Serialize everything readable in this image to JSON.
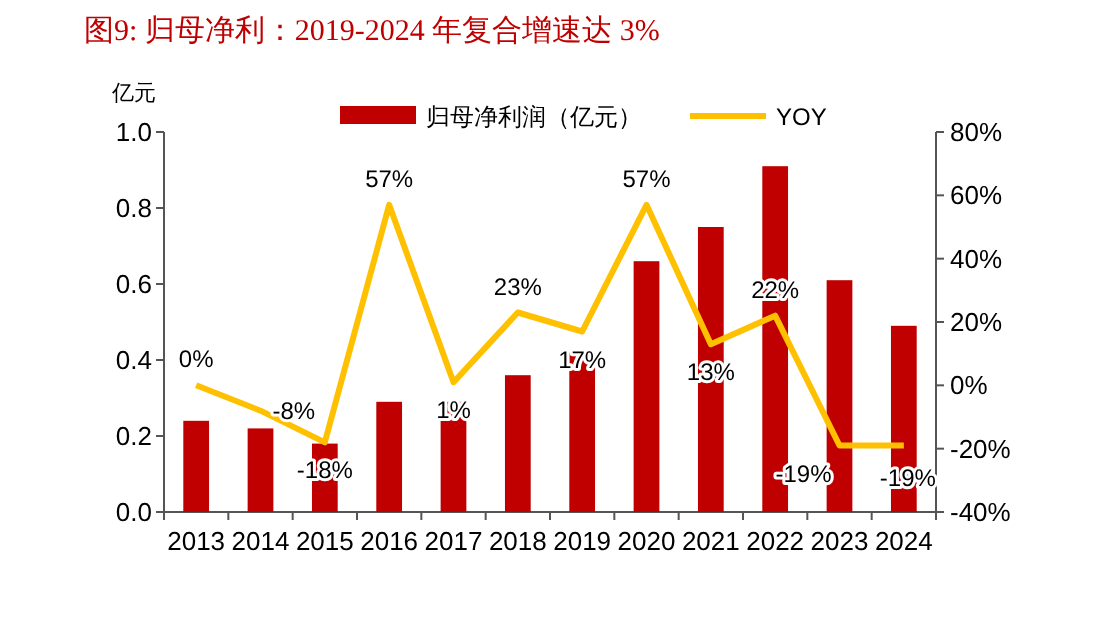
{
  "chart_data": {
    "type": "bar",
    "title": "图9:   归母净利：2019-2024 年复合增速达 3%",
    "ylabel": "亿元",
    "categories": [
      "2013",
      "2014",
      "2015",
      "2016",
      "2017",
      "2018",
      "2019",
      "2020",
      "2021",
      "2022",
      "2023",
      "2024"
    ],
    "series": [
      {
        "name": "归母净利润（亿元）",
        "color": "#c00000",
        "values": [
          0.24,
          0.22,
          0.18,
          0.29,
          0.29,
          0.36,
          0.42,
          0.66,
          0.75,
          0.91,
          0.61,
          0.49
        ]
      },
      {
        "name": "YOY",
        "type": "line",
        "axis": "y2",
        "color": "#ffc000",
        "data_labels": true,
        "value_labels": [
          "0%",
          "-8%",
          "-18%",
          "57%",
          "1%",
          "23%",
          "17%",
          "57%",
          "13%",
          "22%",
          "-19%",
          "-19%"
        ],
        "values": [
          0,
          -8,
          -18,
          57,
          1,
          23,
          17,
          57,
          13,
          22,
          -19,
          -19
        ]
      }
    ],
    "ylim": [
      0,
      1.0
    ],
    "yticks": [
      {
        "value": 0,
        "label": "0.0"
      },
      {
        "value": 0.2,
        "label": "0.2"
      },
      {
        "value": 0.4,
        "label": "0.4"
      },
      {
        "value": 0.6,
        "label": "0.6"
      },
      {
        "value": 0.8,
        "label": "0.8"
      },
      {
        "value": 1.0,
        "label": "1.0"
      }
    ],
    "y2lim": [
      -40,
      80
    ],
    "y2ticks": [
      {
        "value": -40,
        "label": "-40%"
      },
      {
        "value": -20,
        "label": "-20%"
      },
      {
        "value": 0,
        "label": "0%"
      },
      {
        "value": 20,
        "label": "20%"
      },
      {
        "value": 40,
        "label": "40%"
      },
      {
        "value": 60,
        "label": "60%"
      },
      {
        "value": 80,
        "label": "80%"
      }
    ],
    "legend": "top",
    "grid": false
  }
}
